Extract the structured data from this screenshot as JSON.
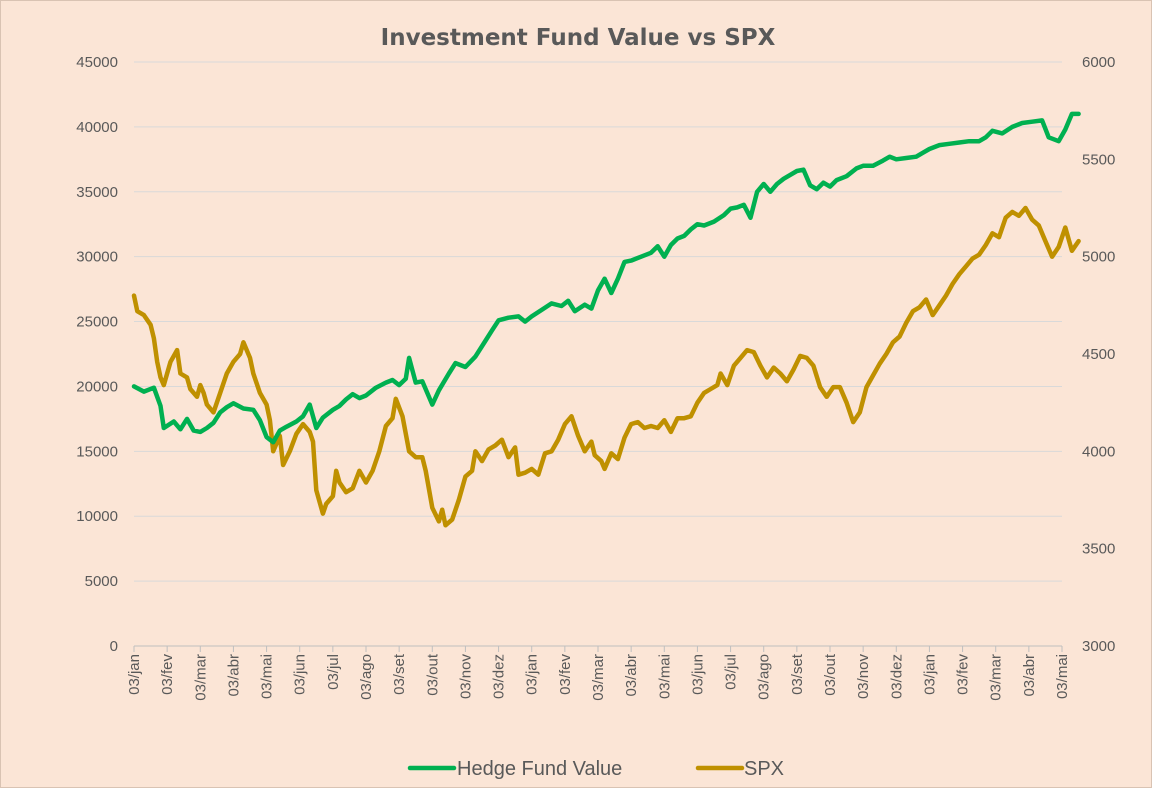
{
  "chart_data": {
    "type": "line",
    "title": "Investment Fund Value vs SPX",
    "xlabel": "",
    "ylabel_left": "",
    "ylabel_right": "",
    "x_tick_labels": [
      "03/jan",
      "03/fev",
      "03/mar",
      "03/abr",
      "03/mai",
      "03/jun",
      "03/jul",
      "03/ago",
      "03/set",
      "03/out",
      "03/nov",
      "03/dez",
      "03/jan",
      "03/fev",
      "03/mar",
      "03/abr",
      "03/mai",
      "03/jun",
      "03/jul",
      "03/ago",
      "03/set",
      "03/out",
      "03/nov",
      "03/dez",
      "03/jan",
      "03/fev",
      "03/mar",
      "03/abr",
      "03/mai"
    ],
    "y_left": {
      "min": 0,
      "max": 45000,
      "step": 5000,
      "ticks": [
        "0",
        "5000",
        "10000",
        "15000",
        "20000",
        "25000",
        "30000",
        "35000",
        "40000",
        "45000"
      ]
    },
    "y_right": {
      "min": 3000,
      "max": 6000,
      "step": 500,
      "ticks": [
        "3000",
        "3500",
        "4000",
        "4500",
        "5000",
        "5500",
        "6000"
      ]
    },
    "grid": "horizontal",
    "legend_position": "bottom",
    "series": [
      {
        "name": "Hedge Fund Value",
        "axis": "left",
        "color": "#00b050",
        "points": [
          [
            0,
            20000
          ],
          [
            0.3,
            19600
          ],
          [
            0.6,
            19900
          ],
          [
            0.8,
            18500
          ],
          [
            0.9,
            16800
          ],
          [
            1.2,
            17300
          ],
          [
            1.4,
            16700
          ],
          [
            1.6,
            17500
          ],
          [
            1.8,
            16600
          ],
          [
            2.0,
            16500
          ],
          [
            2.2,
            16800
          ],
          [
            2.4,
            17200
          ],
          [
            2.6,
            18000
          ],
          [
            2.8,
            18400
          ],
          [
            3.0,
            18700
          ],
          [
            3.3,
            18300
          ],
          [
            3.6,
            18200
          ],
          [
            3.8,
            17400
          ],
          [
            4.0,
            16100
          ],
          [
            4.2,
            15700
          ],
          [
            4.4,
            16600
          ],
          [
            4.6,
            16900
          ],
          [
            4.9,
            17300
          ],
          [
            5.1,
            17700
          ],
          [
            5.3,
            18600
          ],
          [
            5.5,
            16800
          ],
          [
            5.7,
            17600
          ],
          [
            6.0,
            18200
          ],
          [
            6.2,
            18500
          ],
          [
            6.4,
            19000
          ],
          [
            6.6,
            19400
          ],
          [
            6.8,
            19100
          ],
          [
            7.0,
            19300
          ],
          [
            7.3,
            19900
          ],
          [
            7.6,
            20300
          ],
          [
            7.8,
            20500
          ],
          [
            8.0,
            20100
          ],
          [
            8.2,
            20600
          ],
          [
            8.3,
            22200
          ],
          [
            8.5,
            20300
          ],
          [
            8.7,
            20400
          ],
          [
            9.0,
            18600
          ],
          [
            9.2,
            19700
          ],
          [
            9.5,
            21000
          ],
          [
            9.7,
            21800
          ],
          [
            10.0,
            21500
          ],
          [
            10.3,
            22300
          ],
          [
            10.6,
            23500
          ],
          [
            10.8,
            24300
          ],
          [
            11.0,
            25100
          ],
          [
            11.3,
            25300
          ],
          [
            11.6,
            25400
          ],
          [
            11.8,
            25000
          ],
          [
            12.0,
            25400
          ],
          [
            12.3,
            25900
          ],
          [
            12.6,
            26400
          ],
          [
            12.9,
            26200
          ],
          [
            13.1,
            26600
          ],
          [
            13.3,
            25800
          ],
          [
            13.6,
            26300
          ],
          [
            13.8,
            26000
          ],
          [
            14.0,
            27400
          ],
          [
            14.2,
            28300
          ],
          [
            14.4,
            27200
          ],
          [
            14.6,
            28300
          ],
          [
            14.8,
            29600
          ],
          [
            15.0,
            29700
          ],
          [
            15.3,
            30000
          ],
          [
            15.6,
            30300
          ],
          [
            15.8,
            30800
          ],
          [
            16.0,
            30000
          ],
          [
            16.2,
            30900
          ],
          [
            16.4,
            31400
          ],
          [
            16.6,
            31600
          ],
          [
            16.8,
            32100
          ],
          [
            17.0,
            32500
          ],
          [
            17.2,
            32400
          ],
          [
            17.5,
            32700
          ],
          [
            17.8,
            33200
          ],
          [
            18.0,
            33700
          ],
          [
            18.2,
            33800
          ],
          [
            18.4,
            34000
          ],
          [
            18.6,
            33000
          ],
          [
            18.8,
            35000
          ],
          [
            19.0,
            35600
          ],
          [
            19.2,
            35000
          ],
          [
            19.4,
            35600
          ],
          [
            19.6,
            36000
          ],
          [
            19.8,
            36300
          ],
          [
            20.0,
            36600
          ],
          [
            20.2,
            36700
          ],
          [
            20.4,
            35500
          ],
          [
            20.6,
            35200
          ],
          [
            20.8,
            35700
          ],
          [
            21.0,
            35400
          ],
          [
            21.2,
            35900
          ],
          [
            21.5,
            36200
          ],
          [
            21.8,
            36800
          ],
          [
            22.0,
            37000
          ],
          [
            22.3,
            37000
          ],
          [
            22.6,
            37400
          ],
          [
            22.8,
            37700
          ],
          [
            23.0,
            37500
          ],
          [
            23.3,
            37600
          ],
          [
            23.6,
            37700
          ],
          [
            23.8,
            38000
          ],
          [
            24.0,
            38300
          ],
          [
            24.3,
            38600
          ],
          [
            24.6,
            38700
          ],
          [
            24.9,
            38800
          ],
          [
            25.2,
            38900
          ],
          [
            25.5,
            38900
          ],
          [
            25.7,
            39200
          ],
          [
            25.9,
            39700
          ],
          [
            26.2,
            39500
          ],
          [
            26.5,
            40000
          ],
          [
            26.8,
            40300
          ],
          [
            27.1,
            40400
          ],
          [
            27.4,
            40500
          ],
          [
            27.6,
            39200
          ],
          [
            27.9,
            38900
          ],
          [
            28.1,
            39800
          ],
          [
            28.3,
            41000
          ],
          [
            28.5,
            41000
          ]
        ]
      },
      {
        "name": "SPX",
        "axis": "right",
        "color": "#bf9000",
        "points": [
          [
            0,
            4800
          ],
          [
            0.1,
            4720
          ],
          [
            0.3,
            4700
          ],
          [
            0.5,
            4650
          ],
          [
            0.6,
            4580
          ],
          [
            0.7,
            4460
          ],
          [
            0.8,
            4380
          ],
          [
            0.9,
            4340
          ],
          [
            1.1,
            4460
          ],
          [
            1.3,
            4520
          ],
          [
            1.4,
            4400
          ],
          [
            1.6,
            4380
          ],
          [
            1.7,
            4320
          ],
          [
            1.9,
            4280
          ],
          [
            2.0,
            4340
          ],
          [
            2.1,
            4300
          ],
          [
            2.2,
            4240
          ],
          [
            2.4,
            4200
          ],
          [
            2.6,
            4300
          ],
          [
            2.8,
            4400
          ],
          [
            3.0,
            4460
          ],
          [
            3.2,
            4500
          ],
          [
            3.3,
            4560
          ],
          [
            3.5,
            4480
          ],
          [
            3.6,
            4400
          ],
          [
            3.8,
            4300
          ],
          [
            4.0,
            4240
          ],
          [
            4.1,
            4160
          ],
          [
            4.2,
            4000
          ],
          [
            4.4,
            4080
          ],
          [
            4.5,
            3930
          ],
          [
            4.7,
            4000
          ],
          [
            4.9,
            4090
          ],
          [
            5.1,
            4140
          ],
          [
            5.3,
            4100
          ],
          [
            5.4,
            4050
          ],
          [
            5.5,
            3800
          ],
          [
            5.7,
            3680
          ],
          [
            5.8,
            3730
          ],
          [
            6.0,
            3770
          ],
          [
            6.1,
            3900
          ],
          [
            6.2,
            3840
          ],
          [
            6.4,
            3790
          ],
          [
            6.6,
            3810
          ],
          [
            6.8,
            3900
          ],
          [
            7.0,
            3840
          ],
          [
            7.2,
            3900
          ],
          [
            7.4,
            4000
          ],
          [
            7.6,
            4130
          ],
          [
            7.8,
            4170
          ],
          [
            7.9,
            4270
          ],
          [
            8.1,
            4180
          ],
          [
            8.3,
            4000
          ],
          [
            8.5,
            3970
          ],
          [
            8.7,
            3970
          ],
          [
            8.8,
            3900
          ],
          [
            9.0,
            3710
          ],
          [
            9.2,
            3640
          ],
          [
            9.3,
            3700
          ],
          [
            9.4,
            3620
          ],
          [
            9.6,
            3650
          ],
          [
            9.8,
            3750
          ],
          [
            10.0,
            3870
          ],
          [
            10.2,
            3900
          ],
          [
            10.3,
            4000
          ],
          [
            10.5,
            3950
          ],
          [
            10.7,
            4010
          ],
          [
            10.9,
            4030
          ],
          [
            11.1,
            4060
          ],
          [
            11.3,
            3970
          ],
          [
            11.5,
            4020
          ],
          [
            11.6,
            3880
          ],
          [
            11.8,
            3890
          ],
          [
            12.0,
            3910
          ],
          [
            12.2,
            3880
          ],
          [
            12.4,
            3990
          ],
          [
            12.6,
            4000
          ],
          [
            12.8,
            4060
          ],
          [
            13.0,
            4140
          ],
          [
            13.2,
            4180
          ],
          [
            13.4,
            4080
          ],
          [
            13.6,
            4000
          ],
          [
            13.8,
            4050
          ],
          [
            13.9,
            3980
          ],
          [
            14.1,
            3950
          ],
          [
            14.2,
            3910
          ],
          [
            14.4,
            3990
          ],
          [
            14.6,
            3960
          ],
          [
            14.8,
            4070
          ],
          [
            15.0,
            4140
          ],
          [
            15.2,
            4150
          ],
          [
            15.4,
            4120
          ],
          [
            15.6,
            4130
          ],
          [
            15.8,
            4120
          ],
          [
            16.0,
            4160
          ],
          [
            16.2,
            4100
          ],
          [
            16.4,
            4170
          ],
          [
            16.6,
            4170
          ],
          [
            16.8,
            4180
          ],
          [
            17.0,
            4250
          ],
          [
            17.2,
            4300
          ],
          [
            17.4,
            4320
          ],
          [
            17.6,
            4340
          ],
          [
            17.7,
            4400
          ],
          [
            17.9,
            4340
          ],
          [
            18.1,
            4440
          ],
          [
            18.3,
            4480
          ],
          [
            18.5,
            4520
          ],
          [
            18.7,
            4510
          ],
          [
            18.9,
            4440
          ],
          [
            19.1,
            4380
          ],
          [
            19.3,
            4430
          ],
          [
            19.5,
            4400
          ],
          [
            19.7,
            4360
          ],
          [
            19.9,
            4420
          ],
          [
            20.1,
            4490
          ],
          [
            20.3,
            4480
          ],
          [
            20.5,
            4440
          ],
          [
            20.7,
            4330
          ],
          [
            20.9,
            4280
          ],
          [
            21.1,
            4330
          ],
          [
            21.3,
            4330
          ],
          [
            21.5,
            4250
          ],
          [
            21.7,
            4150
          ],
          [
            21.9,
            4200
          ],
          [
            22.1,
            4330
          ],
          [
            22.3,
            4390
          ],
          [
            22.5,
            4450
          ],
          [
            22.7,
            4500
          ],
          [
            22.9,
            4560
          ],
          [
            23.1,
            4590
          ],
          [
            23.3,
            4660
          ],
          [
            23.5,
            4720
          ],
          [
            23.7,
            4740
          ],
          [
            23.9,
            4780
          ],
          [
            24.1,
            4700
          ],
          [
            24.3,
            4750
          ],
          [
            24.5,
            4800
          ],
          [
            24.7,
            4860
          ],
          [
            24.9,
            4910
          ],
          [
            25.1,
            4950
          ],
          [
            25.3,
            4990
          ],
          [
            25.5,
            5010
          ],
          [
            25.7,
            5060
          ],
          [
            25.9,
            5120
          ],
          [
            26.1,
            5100
          ],
          [
            26.3,
            5200
          ],
          [
            26.5,
            5230
          ],
          [
            26.7,
            5210
          ],
          [
            26.9,
            5250
          ],
          [
            27.1,
            5190
          ],
          [
            27.3,
            5160
          ],
          [
            27.5,
            5080
          ],
          [
            27.7,
            5000
          ],
          [
            27.9,
            5050
          ],
          [
            28.1,
            5150
          ],
          [
            28.3,
            5030
          ],
          [
            28.5,
            5080
          ]
        ]
      }
    ]
  }
}
